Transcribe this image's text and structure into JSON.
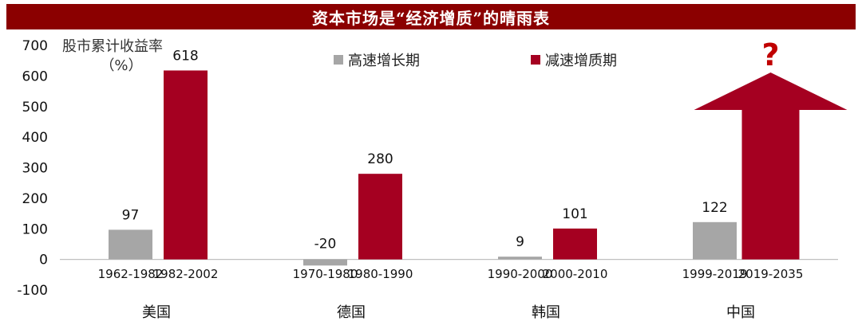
{
  "header": {
    "title": "资本市场是“经济增质”的晴雨表"
  },
  "colors": {
    "fast": "#a6a6a6",
    "slow": "#a50021",
    "title_bg": "#8b0000",
    "qmark": "#c00000"
  },
  "chart_data": {
    "type": "bar",
    "ylabel_line1": "股市累计收益率",
    "ylabel_line2": "（%）",
    "ylim": [
      -100,
      700
    ],
    "yticks": [
      "700",
      "600",
      "500",
      "400",
      "300",
      "200",
      "100",
      "0",
      "-100"
    ],
    "ytick_values": [
      700,
      600,
      500,
      400,
      300,
      200,
      100,
      0,
      -100
    ],
    "legend": [
      {
        "name": "高速增长期",
        "color": "#a6a6a6"
      },
      {
        "name": "减速增质期",
        "color": "#a50021"
      }
    ],
    "groups": [
      {
        "name": "美国",
        "bars": [
          {
            "series": "高速增长期",
            "period": "1962-1982",
            "value": 97,
            "label": "97"
          },
          {
            "series": "减速增质期",
            "period": "1982-2002",
            "value": 618,
            "label": "618"
          }
        ]
      },
      {
        "name": "德国",
        "bars": [
          {
            "series": "高速增长期",
            "period": "1970-1980",
            "value": -20,
            "label": "-20"
          },
          {
            "series": "减速增质期",
            "period": "1980-1990",
            "value": 280,
            "label": "280"
          }
        ]
      },
      {
        "name": "韩国",
        "bars": [
          {
            "series": "高速增长期",
            "period": "1990-2000",
            "value": 9,
            "label": "9"
          },
          {
            "series": "减速增质期",
            "period": "2000-2010",
            "value": 101,
            "label": "101"
          }
        ]
      },
      {
        "name": "中国",
        "bars": [
          {
            "series": "高速增长期",
            "period": "1999-2019",
            "value": 122,
            "label": "122"
          },
          {
            "series": "减速增质期",
            "period": "2019-2035",
            "value": null,
            "label": "?",
            "shape": "arrow"
          }
        ]
      }
    ]
  }
}
